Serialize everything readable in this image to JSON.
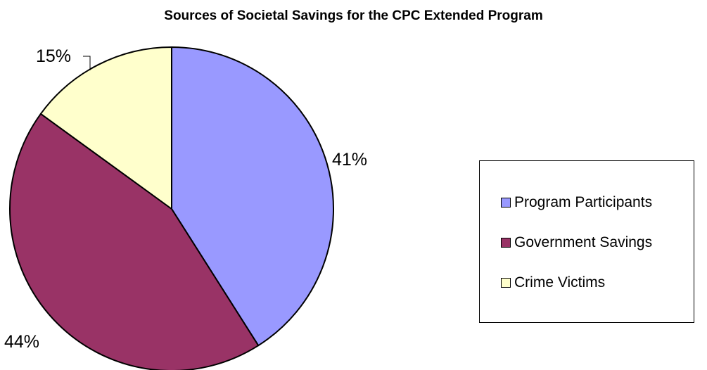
{
  "chart_data": {
    "type": "pie",
    "title": "Sources of Societal Savings for the CPC Extended Program",
    "slices": [
      {
        "name": "Program Participants",
        "value": 41,
        "label": "41%",
        "color": "#9999ff"
      },
      {
        "name": "Government Savings",
        "value": 44,
        "label": "44%",
        "color": "#993366"
      },
      {
        "name": "Crime Victims",
        "value": 15,
        "label": "15%",
        "color": "#ffffcc"
      }
    ],
    "legend_position": "right"
  }
}
